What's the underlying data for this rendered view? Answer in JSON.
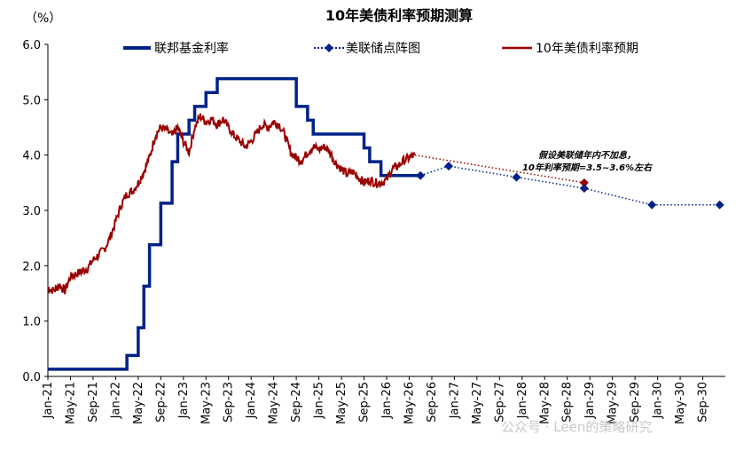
{
  "chart_data": {
    "type": "line",
    "title": "10年美债利率预期测算",
    "ylabel": "（%）",
    "xlabel": "",
    "ylim": [
      0,
      6
    ],
    "yticks": [
      "0.0",
      "1.0",
      "2.0",
      "3.0",
      "4.0",
      "5.0",
      "6.0"
    ],
    "xticks": [
      "Jan-21",
      "May-21",
      "Sep-21",
      "Jan-22",
      "May-22",
      "Sep-22",
      "Jan-23",
      "May-23",
      "Sep-23",
      "Jan-24",
      "May-24",
      "Sep-24",
      "Jan-25",
      "May-25",
      "Sep-25",
      "Jan-26",
      "May-26",
      "Sep-26",
      "Jan-27",
      "May-27",
      "Sep-27",
      "Jan-28",
      "May-28",
      "Sep-28",
      "Jan-29",
      "May-29",
      "Sep-29",
      "Jan-30",
      "May-30",
      "Sep-30"
    ],
    "legend_position": "top",
    "grid": false,
    "series": [
      {
        "name": "联邦基金利率",
        "color": "#002288",
        "style": "step",
        "points": [
          [
            "2021-01",
            0.13
          ],
          [
            "2022-03",
            0.38
          ],
          [
            "2022-05",
            0.88
          ],
          [
            "2022-06",
            1.63
          ],
          [
            "2022-07",
            2.38
          ],
          [
            "2022-09",
            3.13
          ],
          [
            "2022-11",
            3.88
          ],
          [
            "2022-12",
            4.38
          ],
          [
            "2023-02",
            4.63
          ],
          [
            "2023-03",
            4.88
          ],
          [
            "2023-05",
            5.13
          ],
          [
            "2023-07",
            5.38
          ],
          [
            "2024-09",
            4.88
          ],
          [
            "2024-11",
            4.63
          ],
          [
            "2024-12",
            4.38
          ],
          [
            "2025-09",
            4.13
          ],
          [
            "2025-10",
            3.88
          ],
          [
            "2025-12",
            3.63
          ],
          [
            "2026-07",
            3.63
          ]
        ]
      },
      {
        "name": "美联储点阵图",
        "color": "#002288",
        "style": "dotted-marker",
        "points": [
          [
            "2026-07",
            3.63
          ],
          [
            "2026-12",
            3.8
          ],
          [
            "2027-12",
            3.6
          ],
          [
            "2028-12",
            3.4
          ],
          [
            "2029-12",
            3.1
          ],
          [
            "2030-12",
            3.1
          ]
        ]
      },
      {
        "name": "10年美债利率预期",
        "color": "#990000",
        "style": "line",
        "points": [
          [
            "2021-01",
            1.6
          ],
          [
            "2021-02",
            1.55
          ],
          [
            "2021-03",
            1.65
          ],
          [
            "2021-04",
            1.55
          ],
          [
            "2021-05",
            1.8
          ],
          [
            "2021-06",
            1.85
          ],
          [
            "2021-07",
            1.9
          ],
          [
            "2021-08",
            1.95
          ],
          [
            "2021-09",
            2.1
          ],
          [
            "2021-10",
            2.2
          ],
          [
            "2021-11",
            2.3
          ],
          [
            "2021-12",
            2.5
          ],
          [
            "2022-01",
            2.8
          ],
          [
            "2022-02",
            3.1
          ],
          [
            "2022-03",
            3.3
          ],
          [
            "2022-04",
            3.35
          ],
          [
            "2022-05",
            3.5
          ],
          [
            "2022-06",
            3.7
          ],
          [
            "2022-07",
            3.95
          ],
          [
            "2022-08",
            4.35
          ],
          [
            "2022-09",
            4.5
          ],
          [
            "2022-10",
            4.45
          ],
          [
            "2022-11",
            4.35
          ],
          [
            "2022-12",
            4.5
          ],
          [
            "2023-01",
            4.25
          ],
          [
            "2023-02",
            4.05
          ],
          [
            "2023-03",
            4.5
          ],
          [
            "2023-04",
            4.7
          ],
          [
            "2023-05",
            4.6
          ],
          [
            "2023-06",
            4.65
          ],
          [
            "2023-07",
            4.55
          ],
          [
            "2023-08",
            4.65
          ],
          [
            "2023-09",
            4.5
          ],
          [
            "2023-10",
            4.35
          ],
          [
            "2023-11",
            4.25
          ],
          [
            "2023-12",
            4.15
          ],
          [
            "2024-01",
            4.25
          ],
          [
            "2024-02",
            4.4
          ],
          [
            "2024-03",
            4.55
          ],
          [
            "2024-04",
            4.5
          ],
          [
            "2024-05",
            4.6
          ],
          [
            "2024-06",
            4.55
          ],
          [
            "2024-07",
            4.35
          ],
          [
            "2024-08",
            4.05
          ],
          [
            "2024-09",
            3.95
          ],
          [
            "2024-10",
            3.9
          ],
          [
            "2024-11",
            4.05
          ],
          [
            "2024-12",
            4.15
          ],
          [
            "2025-01",
            4.1
          ],
          [
            "2025-02",
            4.15
          ],
          [
            "2025-03",
            4.05
          ],
          [
            "2025-04",
            3.85
          ],
          [
            "2025-05",
            3.75
          ],
          [
            "2025-06",
            3.65
          ],
          [
            "2025-07",
            3.7
          ],
          [
            "2025-08",
            3.6
          ],
          [
            "2025-09",
            3.5
          ],
          [
            "2025-10",
            3.55
          ],
          [
            "2025-11",
            3.5
          ],
          [
            "2025-12",
            3.5
          ],
          [
            "2026-01",
            3.55
          ],
          [
            "2026-02",
            3.75
          ],
          [
            "2026-03",
            3.8
          ],
          [
            "2026-04",
            3.9
          ],
          [
            "2026-05",
            3.95
          ],
          [
            "2026-06",
            4.0
          ]
        ]
      },
      {
        "name": "",
        "color": "#990000",
        "style": "dotted-projection",
        "points": [
          [
            "2026-06",
            4.0
          ],
          [
            "2028-12",
            3.5
          ]
        ]
      }
    ],
    "annotation": {
      "lines": [
        "假设美联储年内不加息，",
        "10年利率预期=3.5~3.6%左右"
      ]
    }
  },
  "watermark": "公众号 · Leen的策略研究"
}
